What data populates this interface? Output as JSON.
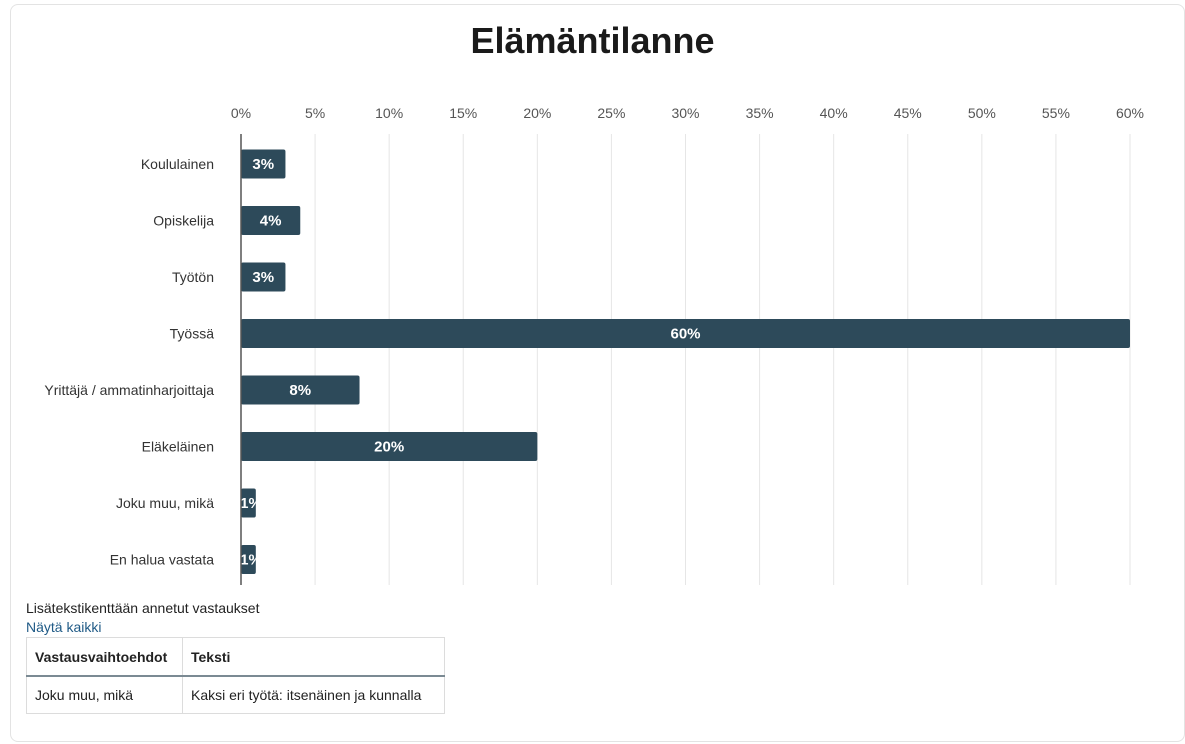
{
  "chart_data": {
    "type": "bar",
    "orientation": "horizontal",
    "title": "Elämäntilanne",
    "categories": [
      "Koululainen",
      "Opiskelija",
      "Työtön",
      "Työssä",
      "Yrittäjä / ammatinharjoittaja",
      "Eläkeläinen",
      "Joku muu, mikä",
      "En halua vastata"
    ],
    "values": [
      3,
      4,
      3,
      60,
      8,
      20,
      1,
      1
    ],
    "data_labels": [
      "3%",
      "4%",
      "3%",
      "60%",
      "8%",
      "20%",
      "1%",
      "1%"
    ],
    "x_ticks": [
      "0%",
      "5%",
      "10%",
      "15%",
      "20%",
      "25%",
      "30%",
      "35%",
      "40%",
      "45%",
      "50%",
      "55%",
      "60%"
    ],
    "xlim": [
      0,
      60
    ],
    "xaxis_position": "top",
    "grid": true,
    "bar_color": "#2d4a5a"
  },
  "extra": {
    "title": "Lisätekstikenttään annetut vastaukset",
    "show_all": "Näytä kaikki",
    "table": {
      "headers": [
        "Vastausvaihtoehdot",
        "Teksti"
      ],
      "rows": [
        [
          "Joku muu, mikä",
          "Kaksi eri työtä: itsenäinen ja kunnalla"
        ]
      ]
    }
  }
}
